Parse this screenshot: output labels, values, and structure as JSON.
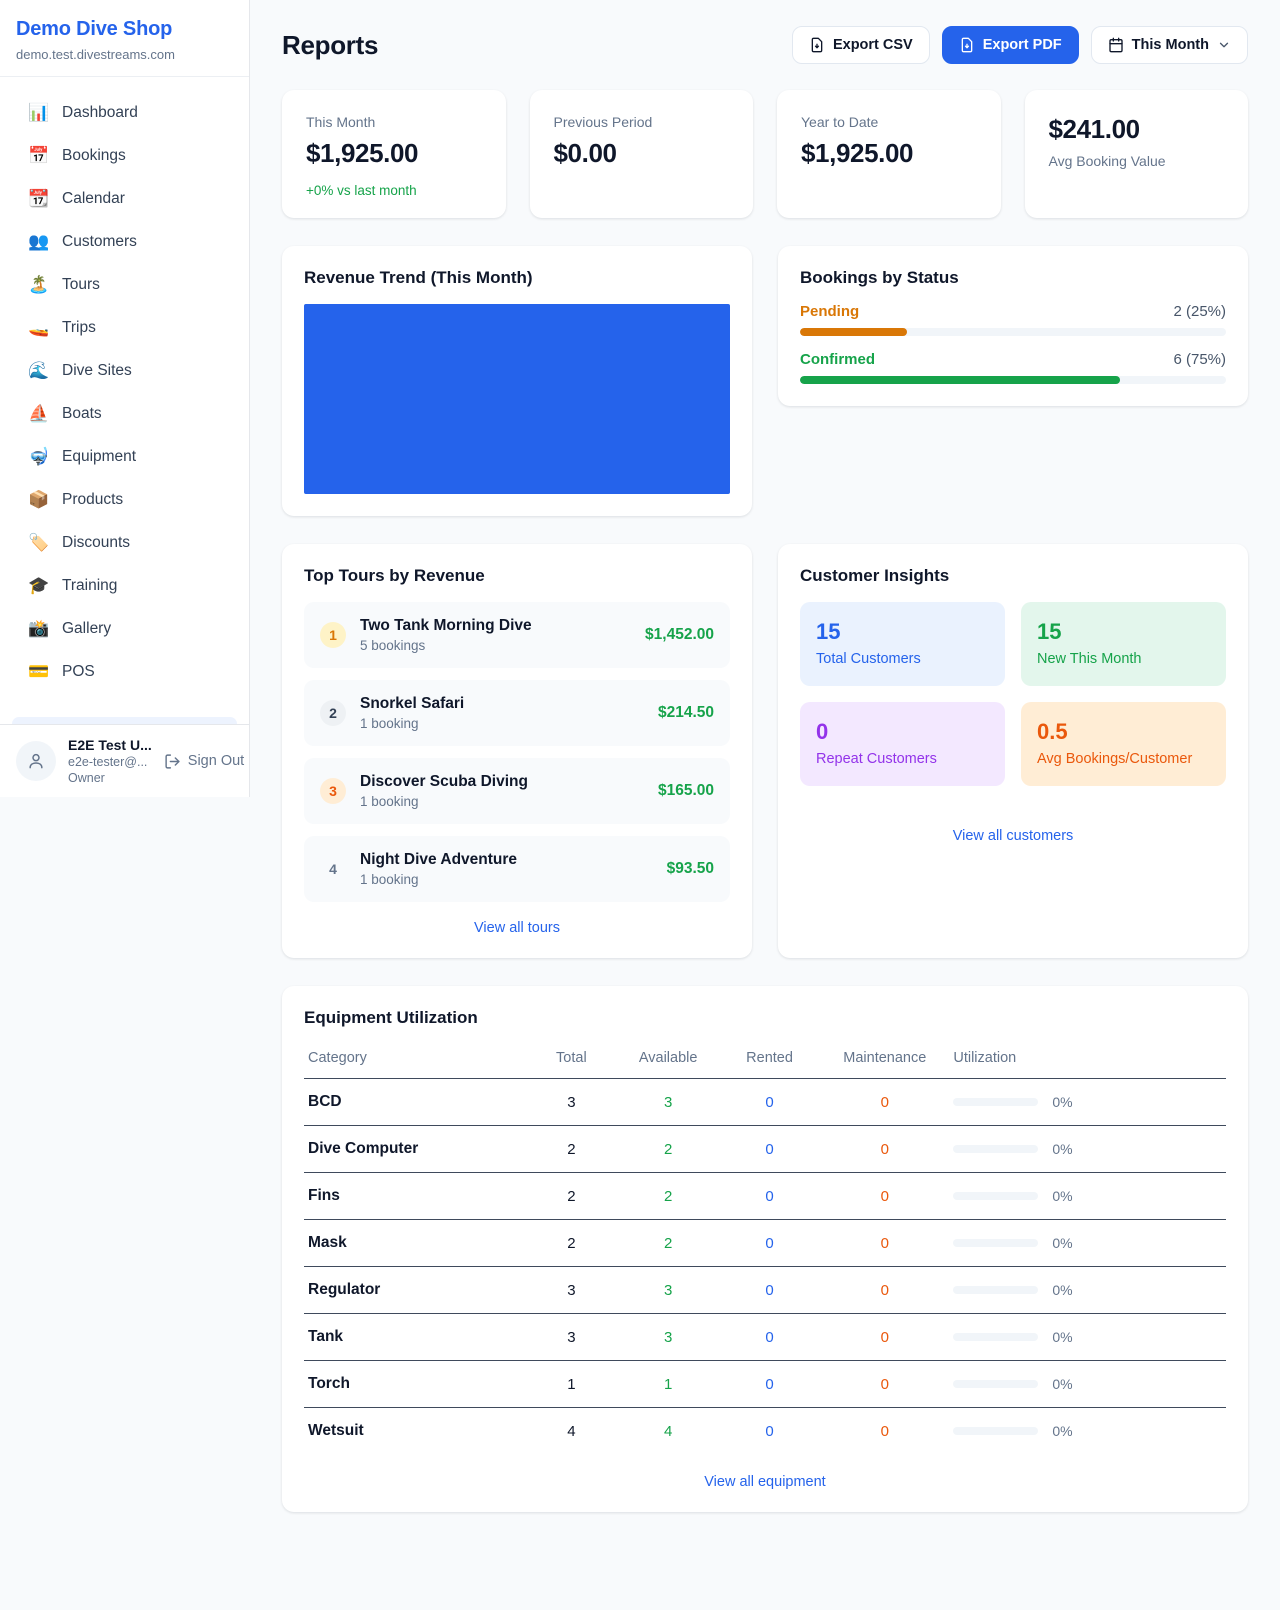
{
  "theme": {
    "accent_blue": "#2563eb",
    "green": "#16a34a",
    "amber": "#d97706",
    "orange": "#ea580c",
    "purple": "#9333ea",
    "muted": "#64748b",
    "page_bg": "#f8fafc"
  },
  "sidebar": {
    "title": "Demo Dive Shop",
    "subtitle": "demo.test.divestreams.com",
    "items": [
      {
        "icon": "📊",
        "label": "Dashboard"
      },
      {
        "icon": "📅",
        "label": "Bookings"
      },
      {
        "icon": "📆",
        "label": "Calendar"
      },
      {
        "icon": "👥",
        "label": "Customers"
      },
      {
        "icon": "🏝️",
        "label": "Tours"
      },
      {
        "icon": "🚤",
        "label": "Trips"
      },
      {
        "icon": "🌊",
        "label": "Dive Sites"
      },
      {
        "icon": "⛵",
        "label": "Boats"
      },
      {
        "icon": "🤿",
        "label": "Equipment"
      },
      {
        "icon": "📦",
        "label": "Products"
      },
      {
        "icon": "🏷️",
        "label": "Discounts"
      },
      {
        "icon": "🎓",
        "label": "Training"
      },
      {
        "icon": "📸",
        "label": "Gallery"
      },
      {
        "icon": "💳",
        "label": "POS"
      }
    ],
    "user": {
      "name": "E2E Test U...",
      "email": "e2e-tester@...",
      "role": "Owner",
      "sign_out_label": "Sign Out"
    }
  },
  "header": {
    "title": "Reports",
    "export_csv_label": "Export CSV",
    "export_pdf_label": "Export PDF",
    "period_label": "This Month"
  },
  "stats": [
    {
      "label": "This Month",
      "value": "$1,925.00",
      "delta": "+0% vs last month"
    },
    {
      "label": "Previous Period",
      "value": "$0.00"
    },
    {
      "label": "Year to Date",
      "value": "$1,925.00"
    },
    {
      "label": "Avg Booking Value",
      "value": "$241.00"
    }
  ],
  "revenue_trend": {
    "title": "Revenue Trend (This Month)",
    "bar_color": "#2563eb",
    "bar_height": "100%"
  },
  "bookings_by_status": {
    "title": "Bookings by Status",
    "rows": [
      {
        "label": "Pending",
        "count_text": "2 (25%)",
        "width": "25%",
        "color": "#d97706"
      },
      {
        "label": "Confirmed",
        "count_text": "6 (75%)",
        "width": "75%",
        "color": "#16a34a"
      }
    ]
  },
  "top_tours": {
    "title": "Top Tours by Revenue",
    "link_label": "View all tours",
    "rows": [
      {
        "rank": "1",
        "name": "Two Tank Morning Dive",
        "bookings": "5 bookings",
        "amount": "$1,452.00",
        "badge_bg": "#fef3c7",
        "badge_fg": "#d97706"
      },
      {
        "rank": "2",
        "name": "Snorkel Safari",
        "bookings": "1 booking",
        "amount": "$214.50",
        "badge_bg": "#eef1f4",
        "badge_fg": "#334155"
      },
      {
        "rank": "3",
        "name": "Discover Scuba Diving",
        "bookings": "1 booking",
        "amount": "$165.00",
        "badge_bg": "#ffedd5",
        "badge_fg": "#ea580c"
      },
      {
        "rank": "4",
        "name": "Night Dive Adventure",
        "bookings": "1 booking",
        "amount": "$93.50",
        "badge_bg": "transparent",
        "badge_fg": "#64748b"
      }
    ]
  },
  "customer_insights": {
    "title": "Customer Insights",
    "link_label": "View all customers",
    "tiles": [
      {
        "value": "15",
        "label": "Total Customers",
        "fg": "#2563eb",
        "bg": "#eaf2fe"
      },
      {
        "value": "15",
        "label": "New This Month",
        "fg": "#16a34a",
        "bg": "#e3f6ec"
      },
      {
        "value": "0",
        "label": "Repeat Customers",
        "fg": "#9333ea",
        "bg": "#f3e8ff"
      },
      {
        "value": "0.5",
        "label": "Avg Bookings/Customer",
        "fg": "#ea580c",
        "bg": "#ffedd5"
      }
    ]
  },
  "equipment": {
    "title": "Equipment Utilization",
    "link_label": "View all equipment",
    "columns": [
      "Category",
      "Total",
      "Available",
      "Rented",
      "Maintenance",
      "Utilization"
    ],
    "rows": [
      {
        "category": "BCD",
        "total": "3",
        "available": "3",
        "rented": "0",
        "maintenance": "0",
        "utilization": "0%"
      },
      {
        "category": "Dive Computer",
        "total": "2",
        "available": "2",
        "rented": "0",
        "maintenance": "0",
        "utilization": "0%"
      },
      {
        "category": "Fins",
        "total": "2",
        "available": "2",
        "rented": "0",
        "maintenance": "0",
        "utilization": "0%"
      },
      {
        "category": "Mask",
        "total": "2",
        "available": "2",
        "rented": "0",
        "maintenance": "0",
        "utilization": "0%"
      },
      {
        "category": "Regulator",
        "total": "3",
        "available": "3",
        "rented": "0",
        "maintenance": "0",
        "utilization": "0%"
      },
      {
        "category": "Tank",
        "total": "3",
        "available": "3",
        "rented": "0",
        "maintenance": "0",
        "utilization": "0%"
      },
      {
        "category": "Torch",
        "total": "1",
        "available": "1",
        "rented": "0",
        "maintenance": "0",
        "utilization": "0%"
      },
      {
        "category": "Wetsuit",
        "total": "4",
        "available": "4",
        "rented": "0",
        "maintenance": "0",
        "utilization": "0%"
      }
    ]
  },
  "chart_data": [
    {
      "type": "bar",
      "title": "Revenue Trend (This Month)",
      "categories": [
        "This Month"
      ],
      "values": [
        1925
      ],
      "ylim": [
        0,
        1925
      ],
      "bar_color": "#2563eb",
      "note": "single full-width, full-height bar; no axes or gridlines shown"
    },
    {
      "type": "bar",
      "title": "Bookings by Status",
      "categories": [
        "Pending",
        "Confirmed"
      ],
      "values": [
        2,
        6
      ],
      "percent": [
        25,
        75
      ],
      "colors": [
        "#d97706",
        "#16a34a"
      ],
      "note": "horizontal progress bars with counts and percentages"
    }
  ]
}
